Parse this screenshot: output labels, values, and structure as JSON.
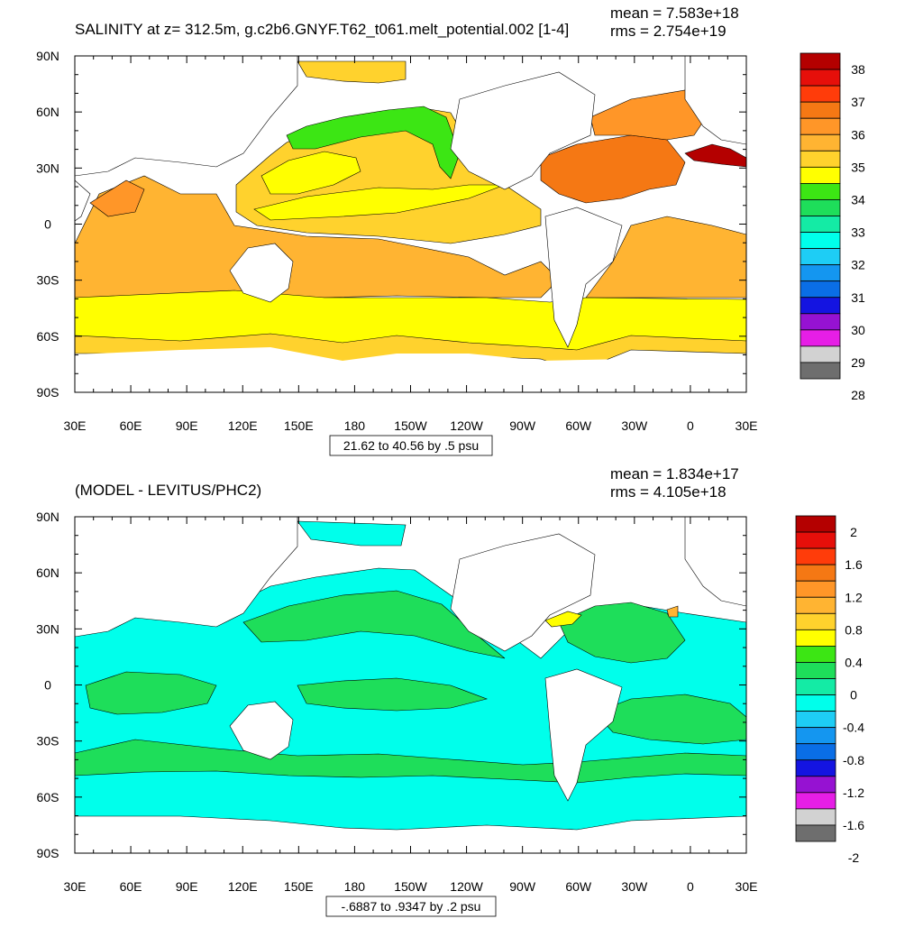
{
  "palette": {
    "salinity": [
      "#6e6e6e",
      "#d2d2d2",
      "#e61ee6",
      "#9612d2",
      "#1414e1",
      "#0a6ee6",
      "#1496f0",
      "#1ecdf5",
      "#00ffeb",
      "#14eba5",
      "#1ede5a",
      "#3ce614",
      "#ffff00",
      "#ffd22d",
      "#ffb432",
      "#ff9628",
      "#f57814",
      "#ff3c0a",
      "#e60f0a",
      "#b40000"
    ],
    "ocean_top": {
      "north_pacific": "#ffd22d",
      "subpolar_gyre": "#3ce614",
      "atlantic_gyre": "#f57814",
      "mediterranean": "#b40000",
      "southern_band": "#ffff00",
      "subtropics": "#ffb432"
    },
    "ocean_bottom": {
      "base": "#00ffeb",
      "positive": "#1ede5a"
    }
  },
  "chart_data": [
    {
      "type": "heatmap",
      "title": "SALINITY at z= 312.5m, g.c2b6.GNYF.T62_t061.melt_potential.002 [1-4]",
      "stats": {
        "mean": "mean = 7.583e+18",
        "rms": "rms = 2.754e+19"
      },
      "ylabels": [
        "90N",
        "60N",
        "30N",
        "0",
        "30S",
        "60S",
        "90S"
      ],
      "xlabels": [
        "30E",
        "60E",
        "90E",
        "120E",
        "150E",
        "180",
        "150W",
        "120W",
        "90W",
        "60W",
        "30W",
        "0",
        "30E"
      ],
      "xlim": [
        30,
        390
      ],
      "ylim": [
        -90,
        90
      ],
      "contour_info": "21.62 to 40.56 by .5 psu",
      "colorbar_labels": [
        "38",
        "37",
        "36",
        "35",
        "34",
        "33",
        "32",
        "31",
        "30",
        "29",
        "28"
      ],
      "colorbar_levels": [
        28,
        38.5
      ],
      "colorbar_step": 0.5
    },
    {
      "type": "heatmap",
      "title": "(MODEL - LEVITUS/PHC2)",
      "stats": {
        "mean": "mean = 1.834e+17",
        "rms": "rms = 4.105e+18"
      },
      "ylabels": [
        "90N",
        "60N",
        "30N",
        "0",
        "30S",
        "60S",
        "90S"
      ],
      "xlabels": [
        "30E",
        "60E",
        "90E",
        "120E",
        "150E",
        "180",
        "150W",
        "120W",
        "90W",
        "60W",
        "30W",
        "0",
        "30E"
      ],
      "xlim": [
        30,
        390
      ],
      "ylim": [
        -90,
        90
      ],
      "contour_info": "-.6887 to .9347 by .2 psu",
      "colorbar_labels": [
        "2",
        "1.6",
        "1.2",
        "0.8",
        "0.4",
        "0",
        "-0.4",
        "-0.8",
        "-1.2",
        "-1.6",
        "-2"
      ],
      "colorbar_levels": [
        -2,
        2
      ],
      "colorbar_step": 0.2
    }
  ]
}
